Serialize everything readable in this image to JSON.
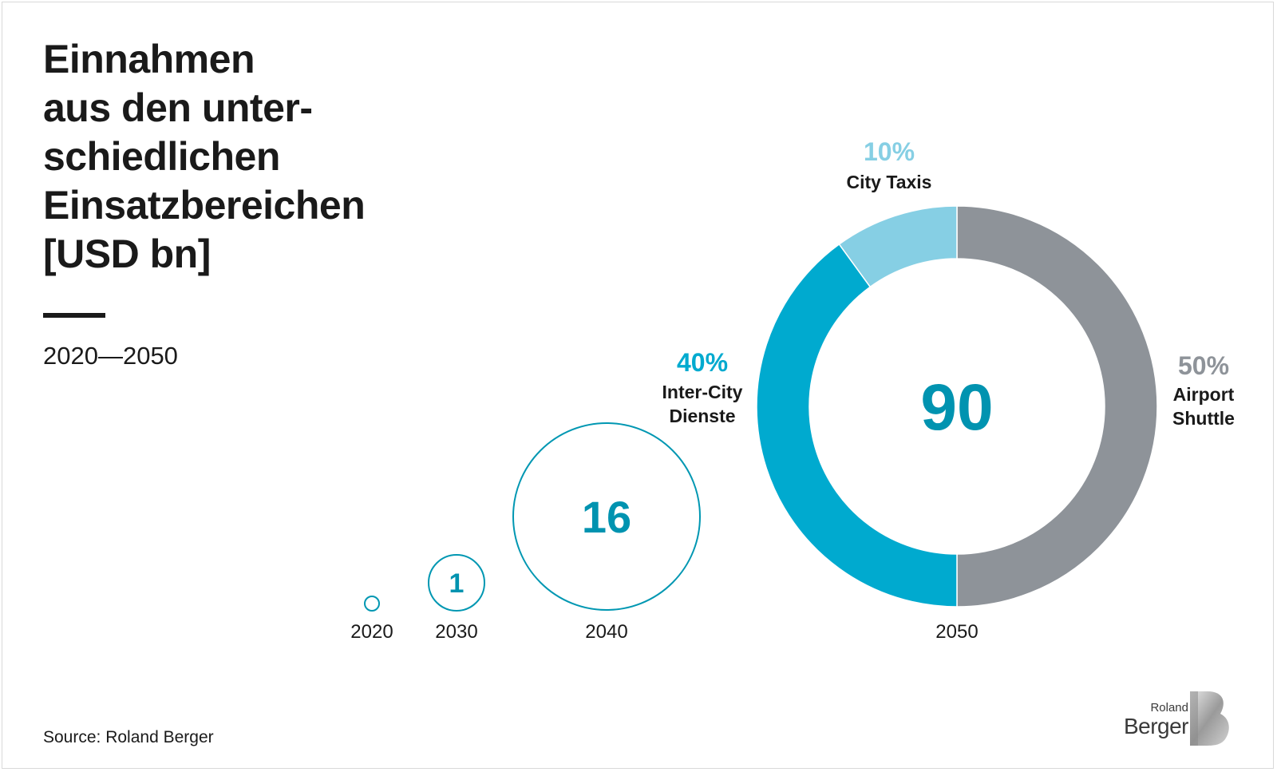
{
  "title_lines": [
    "Einnahmen",
    "aus den unter-",
    "schiedlichen",
    "Einsatzbereichen",
    "[USD bn]"
  ],
  "subtitle": "2020—2050",
  "source": "Source: Roland Berger",
  "logo": {
    "small": "Roland",
    "large": "Berger",
    "icon": "roland-berger-b-logo"
  },
  "colors": {
    "ring_stroke": "#0097b2",
    "value_text": "#0093b0",
    "inter_city": "#00aacf",
    "city_taxis": "#86cfe4",
    "airport": "#8e9399",
    "label_dark": "#1a1a1a"
  },
  "chart_data": {
    "type": "bubble-donut",
    "years": [
      "2020",
      "2030",
      "2040",
      "2050"
    ],
    "values": [
      null,
      1,
      16,
      90
    ],
    "value_labels": [
      "",
      "1",
      "16",
      "90"
    ],
    "breakdown_2050": [
      {
        "name": "Airport Shuttle",
        "label_lines": [
          "Airport",
          "Shuttle"
        ],
        "share": 50,
        "pct_label": "50%"
      },
      {
        "name": "Inter-City Dienste",
        "label_lines": [
          "Inter-City",
          "Dienste"
        ],
        "share": 40,
        "pct_label": "40%"
      },
      {
        "name": "City Taxis",
        "label_lines": [
          "City Taxis"
        ],
        "share": 10,
        "pct_label": "10%"
      }
    ]
  }
}
